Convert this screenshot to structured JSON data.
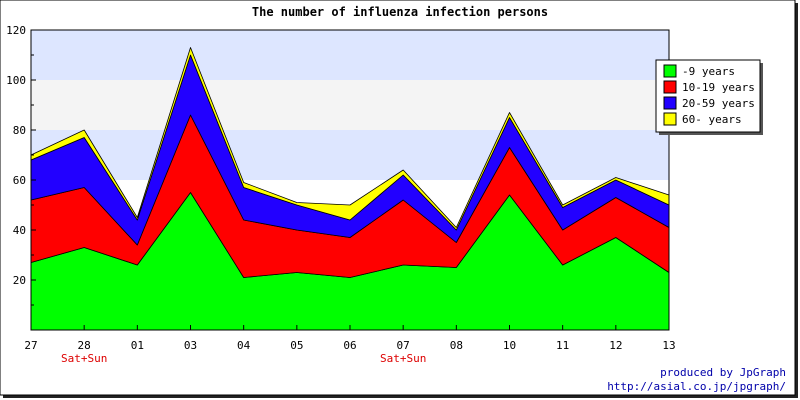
{
  "chart_data": {
    "type": "area",
    "stacked": true,
    "title": "The number of influenza infection persons",
    "xlabel": "",
    "ylabel": "",
    "categories": [
      "27",
      "28",
      "01",
      "03",
      "04",
      "05",
      "06",
      "07",
      "08",
      "10",
      "11",
      "12",
      "13"
    ],
    "category_notes": [
      "",
      "Sat+Sun",
      "",
      "",
      "",
      "",
      "",
      "Sat+Sun",
      "",
      "",
      "",
      "",
      ""
    ],
    "ylim": [
      0,
      120
    ],
    "yticks": [
      20,
      40,
      60,
      80,
      100,
      120
    ],
    "series": [
      {
        "name": "-9 years",
        "color": "#00ff00",
        "values": [
          27,
          33,
          26,
          55,
          21,
          23,
          21,
          26,
          25,
          54,
          26,
          37,
          23
        ]
      },
      {
        "name": "10-19 years",
        "color": "#ff0000",
        "values": [
          25,
          24,
          8,
          31,
          23,
          17,
          16,
          26,
          10,
          19,
          14,
          16,
          18
        ]
      },
      {
        "name": "20-59 years",
        "color": "#2200ff",
        "values": [
          16,
          20,
          10,
          24,
          13,
          10,
          7,
          10,
          5,
          12,
          9,
          7,
          9
        ]
      },
      {
        "name": "60- years",
        "color": "#ffff00",
        "values": [
          2,
          3,
          1,
          3,
          2,
          1,
          6,
          2,
          1,
          2,
          1,
          1,
          4
        ]
      }
    ],
    "bands": {
      "colors": [
        "#dde6ff",
        "#f4f4f4"
      ],
      "from": 60
    },
    "legend": "top-right",
    "grid": false
  },
  "footer": {
    "line1": "produced by JpGraph",
    "line2": "http://asial.co.jp/jpgraph/"
  }
}
